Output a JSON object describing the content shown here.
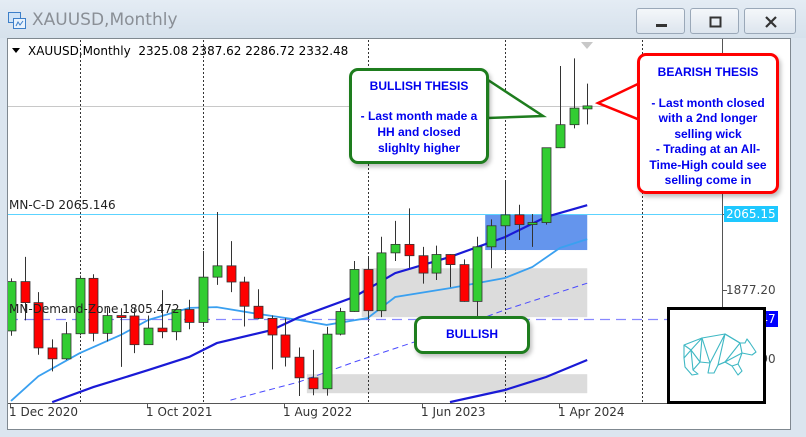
{
  "window": {
    "title": "XAUUSD,Monthly",
    "buttons": [
      "minimize",
      "maximize",
      "close"
    ]
  },
  "chart_header": {
    "symbol": "XAUUSD,Monthly",
    "ohlc": "2325.08 2387.62 2286.72 2332.48"
  },
  "colors": {
    "bull_candle": "#32cd32",
    "bear_candle": "#ff0000",
    "ma_fast": "#3aa0f0",
    "ma_slow": "#1a1ad6",
    "resistance_line": "#5cd3ff",
    "demand_line": "#8888ff",
    "supply_zone": "#6495ed",
    "gray_zone": "#dcdcdc",
    "bullish_border": "#1e7d1e",
    "bearish_border": "#ff0000",
    "callout_text": "#0000ee",
    "bear_icon": "#3fb8c4"
  },
  "chart_data": {
    "type": "candlestick",
    "symbol": "XAUUSD",
    "timeframe": "Monthly",
    "ylim": [
      1597,
      2495
    ],
    "grid": false,
    "candles": [
      {
        "date": "2020-12",
        "o": 1776,
        "h": 1906,
        "l": 1764,
        "c": 1898
      },
      {
        "date": "2021-01",
        "o": 1898,
        "h": 1959,
        "l": 1802,
        "c": 1846
      },
      {
        "date": "2021-02",
        "o": 1846,
        "h": 1872,
        "l": 1717,
        "c": 1734
      },
      {
        "date": "2021-03",
        "o": 1734,
        "h": 1755,
        "l": 1676,
        "c": 1707
      },
      {
        "date": "2021-04",
        "o": 1707,
        "h": 1798,
        "l": 1704,
        "c": 1769
      },
      {
        "date": "2021-05",
        "o": 1769,
        "h": 1913,
        "l": 1765,
        "c": 1906
      },
      {
        "date": "2021-06",
        "o": 1906,
        "h": 1916,
        "l": 1750,
        "c": 1770
      },
      {
        "date": "2021-07",
        "o": 1770,
        "h": 1834,
        "l": 1750,
        "c": 1814
      },
      {
        "date": "2021-08",
        "o": 1814,
        "h": 1832,
        "l": 1687,
        "c": 1813
      },
      {
        "date": "2021-09",
        "o": 1813,
        "h": 1834,
        "l": 1721,
        "c": 1742
      },
      {
        "date": "2021-10",
        "o": 1742,
        "h": 1814,
        "l": 1746,
        "c": 1783
      },
      {
        "date": "2021-11",
        "o": 1783,
        "h": 1877,
        "l": 1758,
        "c": 1774
      },
      {
        "date": "2021-12",
        "o": 1774,
        "h": 1831,
        "l": 1753,
        "c": 1829
      },
      {
        "date": "2022-01",
        "o": 1829,
        "h": 1853,
        "l": 1780,
        "c": 1797
      },
      {
        "date": "2022-02",
        "o": 1797,
        "h": 1974,
        "l": 1786,
        "c": 1909
      },
      {
        "date": "2022-03",
        "o": 1909,
        "h": 2070,
        "l": 1890,
        "c": 1937
      },
      {
        "date": "2022-04",
        "o": 1937,
        "h": 1998,
        "l": 1872,
        "c": 1897
      },
      {
        "date": "2022-05",
        "o": 1897,
        "h": 1910,
        "l": 1787,
        "c": 1837
      },
      {
        "date": "2022-06",
        "o": 1837,
        "h": 1879,
        "l": 1805,
        "c": 1807
      },
      {
        "date": "2022-07",
        "o": 1807,
        "h": 1814,
        "l": 1681,
        "c": 1766
      },
      {
        "date": "2022-08",
        "o": 1766,
        "h": 1807,
        "l": 1688,
        "c": 1711
      },
      {
        "date": "2022-09",
        "o": 1711,
        "h": 1735,
        "l": 1615,
        "c": 1660
      },
      {
        "date": "2022-10",
        "o": 1660,
        "h": 1729,
        "l": 1617,
        "c": 1633
      },
      {
        "date": "2022-11",
        "o": 1633,
        "h": 1786,
        "l": 1616,
        "c": 1768
      },
      {
        "date": "2022-12",
        "o": 1768,
        "h": 1833,
        "l": 1765,
        "c": 1824
      },
      {
        "date": "2023-01",
        "o": 1824,
        "h": 1949,
        "l": 1823,
        "c": 1928
      },
      {
        "date": "2023-02",
        "o": 1928,
        "h": 1959,
        "l": 1805,
        "c": 1826
      },
      {
        "date": "2023-03",
        "o": 1826,
        "h": 2009,
        "l": 1810,
        "c": 1969
      },
      {
        "date": "2023-04",
        "o": 1969,
        "h": 2048,
        "l": 1949,
        "c": 1990
      },
      {
        "date": "2023-05",
        "o": 1990,
        "h": 2079,
        "l": 1932,
        "c": 1962
      },
      {
        "date": "2023-06",
        "o": 1962,
        "h": 1984,
        "l": 1893,
        "c": 1919
      },
      {
        "date": "2023-07",
        "o": 1919,
        "h": 1987,
        "l": 1902,
        "c": 1965
      },
      {
        "date": "2023-08",
        "o": 1965,
        "h": 1966,
        "l": 1884,
        "c": 1940
      },
      {
        "date": "2023-09",
        "o": 1940,
        "h": 1953,
        "l": 1848,
        "c": 1849
      },
      {
        "date": "2023-10",
        "o": 1849,
        "h": 2009,
        "l": 1810,
        "c": 1984
      },
      {
        "date": "2023-11",
        "o": 1984,
        "h": 2052,
        "l": 1931,
        "c": 2036
      },
      {
        "date": "2023-12",
        "o": 2036,
        "h": 2146,
        "l": 1973,
        "c": 2063
      },
      {
        "date": "2024-01",
        "o": 2063,
        "h": 2088,
        "l": 2001,
        "c": 2039
      },
      {
        "date": "2024-02",
        "o": 2039,
        "h": 2065,
        "l": 1984,
        "c": 2044
      },
      {
        "date": "2024-03",
        "o": 2044,
        "h": 2222,
        "l": 2039,
        "c": 2229
      },
      {
        "date": "2024-04",
        "o": 2229,
        "h": 2431,
        "l": 2228,
        "c": 2286
      },
      {
        "date": "2024-05",
        "o": 2286,
        "h": 2450,
        "l": 2277,
        "c": 2327
      },
      {
        "date": "2024-06",
        "o": 2325.08,
        "h": 2387.62,
        "l": 2286.72,
        "c": 2332.48
      }
    ],
    "indicators": [
      {
        "style": "fast",
        "points": [
          [
            "2020-12",
            1603
          ],
          [
            "2021-02",
            1664
          ],
          [
            "2021-05",
            1721
          ],
          [
            "2021-08",
            1766
          ],
          [
            "2021-10",
            1803
          ],
          [
            "2022-01",
            1833
          ],
          [
            "2022-03",
            1835
          ],
          [
            "2022-06",
            1818
          ],
          [
            "2022-09",
            1803
          ],
          [
            "2022-11",
            1791
          ],
          [
            "2023-02",
            1808
          ],
          [
            "2023-04",
            1860
          ],
          [
            "2023-08",
            1882
          ],
          [
            "2023-12",
            1907
          ],
          [
            "2024-02",
            1934
          ],
          [
            "2024-04",
            1981
          ],
          [
            "2024-06",
            2003
          ]
        ]
      },
      {
        "style": "slow",
        "points": [
          [
            "2021-03",
            1600
          ],
          [
            "2021-06",
            1637
          ],
          [
            "2021-10",
            1679
          ],
          [
            "2022-01",
            1712
          ],
          [
            "2022-03",
            1746
          ],
          [
            "2022-07",
            1778
          ],
          [
            "2022-09",
            1810
          ],
          [
            "2023-01",
            1860
          ],
          [
            "2023-04",
            1919
          ],
          [
            "2023-08",
            1959
          ],
          [
            "2023-12",
            2008
          ],
          [
            "2024-03",
            2058
          ],
          [
            "2024-06",
            2087
          ]
        ]
      },
      {
        "style": "dashed",
        "points": [
          [
            "2022-04",
            1605
          ],
          [
            "2022-09",
            1650
          ],
          [
            "2023-01",
            1699
          ],
          [
            "2023-08",
            1778
          ],
          [
            "2023-12",
            1828
          ],
          [
            "2024-06",
            1894
          ]
        ]
      },
      {
        "style": "slow",
        "points": [
          [
            "2023-08",
            1600
          ],
          [
            "2023-12",
            1630
          ],
          [
            "2024-03",
            1662
          ],
          [
            "2024-06",
            1704
          ]
        ]
      }
    ],
    "zones": [
      {
        "style": "supply",
        "from": "2023-11",
        "to": "2024-06",
        "top": 2065,
        "bottom": 1976
      },
      {
        "style": "gray",
        "from": "2023-02",
        "to": "2024-06",
        "top": 1931,
        "bottom": 1810
      },
      {
        "style": "gray",
        "from": "2022-10",
        "to": "2024-06",
        "top": 1669,
        "bottom": 1622
      }
    ],
    "hlines": [
      {
        "name": "MN-C-D",
        "label": "MN-C-D 2065.146",
        "price": 2065.146,
        "style": "solid"
      },
      {
        "name": "MN-Demand-Zone",
        "label": "MN-Demand-Zone 1805.472",
        "price": 1805.472,
        "style": "dashed"
      },
      {
        "name": "current",
        "price": 2332.48,
        "style": "gray"
      }
    ],
    "period_separators": [
      "2021-05",
      "2022-02",
      "2023-02",
      "2023-12",
      "2024-10"
    ],
    "y_tick_labels": [
      {
        "text": "2065.15",
        "price": 2065.15,
        "style": "highlight-cyan"
      },
      {
        "text": "1877.20",
        "price": 1877.2,
        "style": "plain"
      },
      {
        "text": "1805.47",
        "price": 1805.47,
        "style": "highlight-blue"
      },
      {
        "text": "1706.90",
        "price": 1706.9,
        "style": "plain"
      }
    ],
    "x_tick_labels": [
      {
        "text": "1 Dec 2020",
        "date": "2020-12"
      },
      {
        "text": "1 Oct 2021",
        "date": "2021-10"
      },
      {
        "text": "1 Aug 2022",
        "date": "2022-08"
      },
      {
        "text": "1 Jun 2023",
        "date": "2023-06"
      },
      {
        "text": "1 Apr 2024",
        "date": "2024-04"
      }
    ]
  },
  "callouts": {
    "bullish_thesis": {
      "title": "BULLISH THESIS",
      "line1": "- Last month made a",
      "line2": "HH and closed",
      "line3": "slighlty higher"
    },
    "bearish_thesis": {
      "title": "BEARISH THESIS",
      "line1": "- Last month closed",
      "line2": "with a 2nd longer",
      "line3": "selling wick",
      "line4": "- Trading at an All-",
      "line5": "Time-High could see",
      "line6": "selling come in"
    },
    "bullish": {
      "title": "BULLISH"
    }
  },
  "image": {
    "icon": "geometric-bear-icon"
  }
}
